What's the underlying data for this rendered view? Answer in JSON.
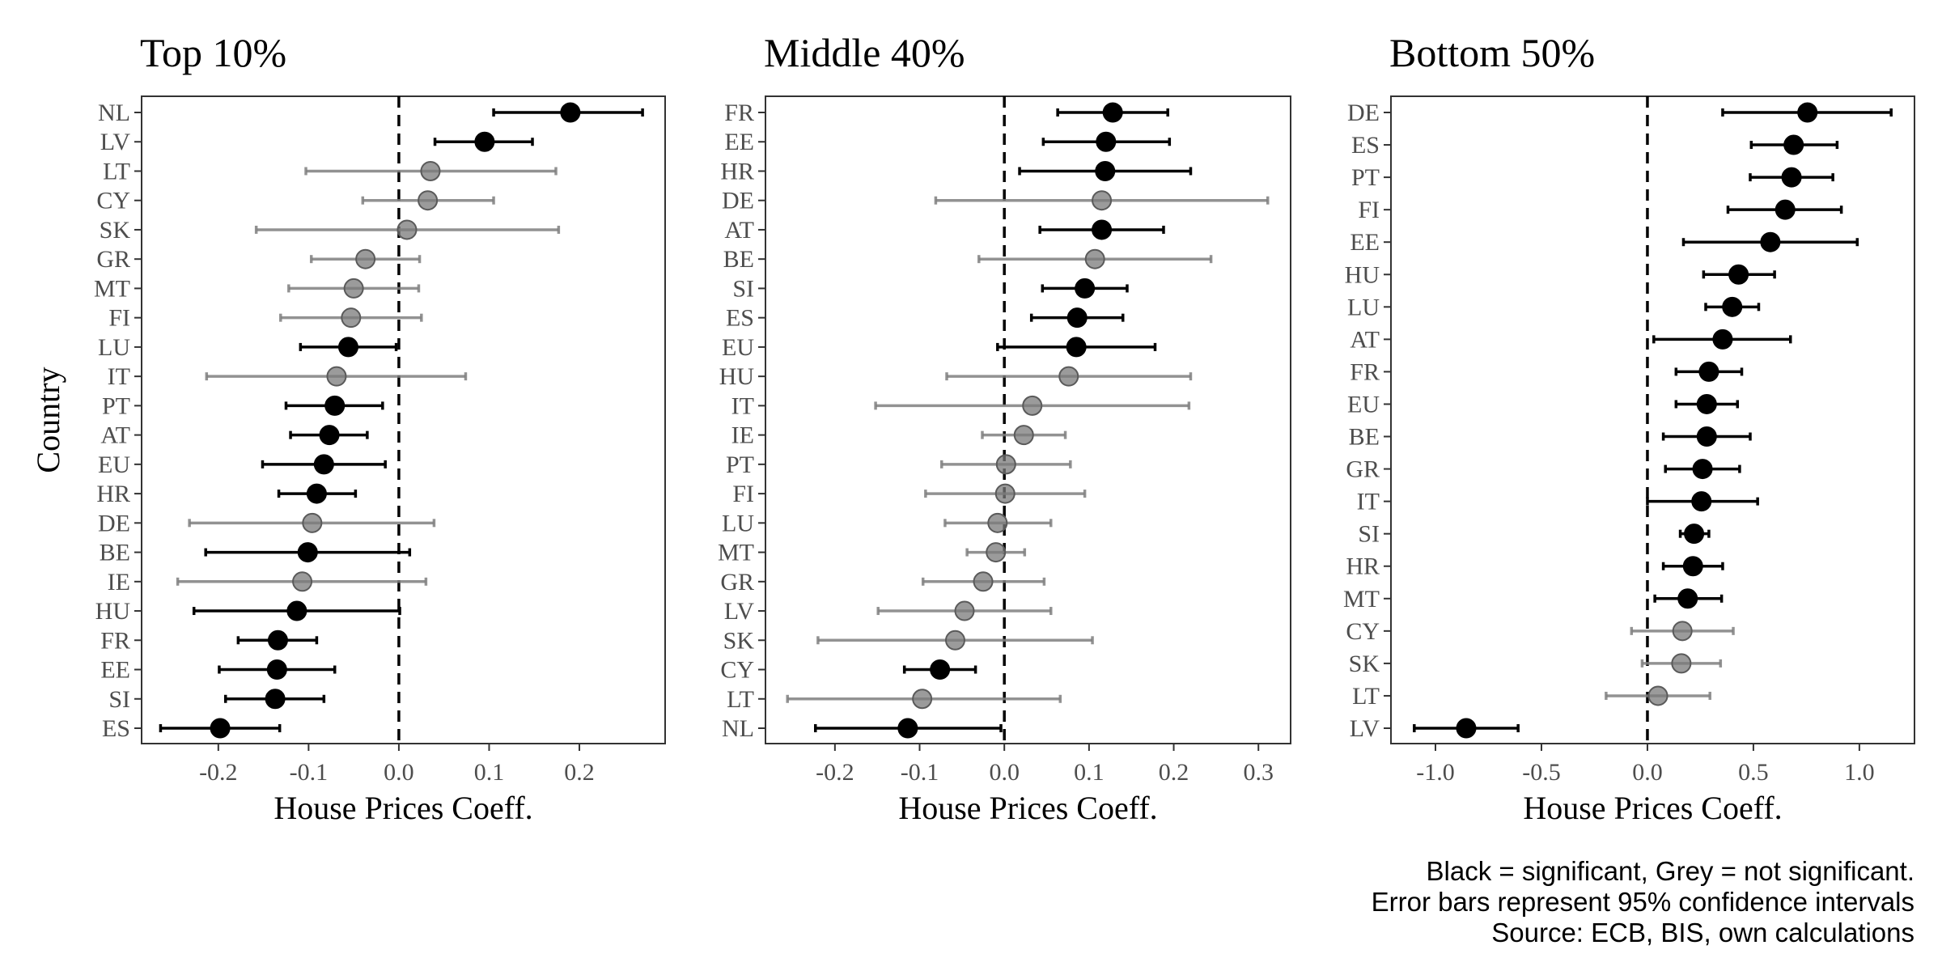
{
  "chart_data": [
    {
      "type": "scatter",
      "title": "Top 10%",
      "xlabel": "House Prices Coeff.",
      "ylabel": "Country",
      "xlim": [
        -0.285,
        0.295
      ],
      "xticks": [
        -0.2,
        -0.1,
        0.0,
        0.1,
        0.2
      ],
      "xtick_labels": [
        "-0.2",
        "-0.1",
        "0.0",
        "0.1",
        "0.2"
      ],
      "reference_line_x": 0.0,
      "grid": false,
      "points": [
        {
          "country": "NL",
          "estimate": 0.19,
          "ci_low": 0.105,
          "ci_high": 0.27,
          "significant": true
        },
        {
          "country": "LV",
          "estimate": 0.095,
          "ci_low": 0.04,
          "ci_high": 0.148,
          "significant": true
        },
        {
          "country": "LT",
          "estimate": 0.035,
          "ci_low": -0.103,
          "ci_high": 0.174,
          "significant": false
        },
        {
          "country": "CY",
          "estimate": 0.032,
          "ci_low": -0.04,
          "ci_high": 0.105,
          "significant": false
        },
        {
          "country": "SK",
          "estimate": 0.009,
          "ci_low": -0.158,
          "ci_high": 0.177,
          "significant": false
        },
        {
          "country": "GR",
          "estimate": -0.037,
          "ci_low": -0.097,
          "ci_high": 0.023,
          "significant": false
        },
        {
          "country": "MT",
          "estimate": -0.05,
          "ci_low": -0.122,
          "ci_high": 0.022,
          "significant": false
        },
        {
          "country": "FI",
          "estimate": -0.053,
          "ci_low": -0.131,
          "ci_high": 0.025,
          "significant": false
        },
        {
          "country": "LU",
          "estimate": -0.056,
          "ci_low": -0.109,
          "ci_high": -0.003,
          "significant": true
        },
        {
          "country": "IT",
          "estimate": -0.069,
          "ci_low": -0.213,
          "ci_high": 0.074,
          "significant": false
        },
        {
          "country": "PT",
          "estimate": -0.071,
          "ci_low": -0.125,
          "ci_high": -0.018,
          "significant": true
        },
        {
          "country": "AT",
          "estimate": -0.077,
          "ci_low": -0.12,
          "ci_high": -0.035,
          "significant": true
        },
        {
          "country": "EU",
          "estimate": -0.083,
          "ci_low": -0.151,
          "ci_high": -0.015,
          "significant": true
        },
        {
          "country": "HR",
          "estimate": -0.091,
          "ci_low": -0.133,
          "ci_high": -0.048,
          "significant": true
        },
        {
          "country": "DE",
          "estimate": -0.096,
          "ci_low": -0.232,
          "ci_high": 0.039,
          "significant": false
        },
        {
          "country": "BE",
          "estimate": -0.101,
          "ci_low": -0.214,
          "ci_high": 0.012,
          "significant": true
        },
        {
          "country": "IE",
          "estimate": -0.107,
          "ci_low": -0.245,
          "ci_high": 0.03,
          "significant": false
        },
        {
          "country": "HU",
          "estimate": -0.113,
          "ci_low": -0.227,
          "ci_high": 0.001,
          "significant": true
        },
        {
          "country": "FR",
          "estimate": -0.134,
          "ci_low": -0.178,
          "ci_high": -0.091,
          "significant": true
        },
        {
          "country": "EE",
          "estimate": -0.135,
          "ci_low": -0.199,
          "ci_high": -0.071,
          "significant": true
        },
        {
          "country": "SI",
          "estimate": -0.137,
          "ci_low": -0.192,
          "ci_high": -0.083,
          "significant": true
        },
        {
          "country": "ES",
          "estimate": -0.198,
          "ci_low": -0.264,
          "ci_high": -0.132,
          "significant": true
        }
      ]
    },
    {
      "type": "scatter",
      "title": "Middle 40%",
      "xlabel": "House Prices Coeff.",
      "ylabel": "",
      "xlim": [
        -0.282,
        0.338
      ],
      "xticks": [
        -0.2,
        -0.1,
        0.0,
        0.1,
        0.2,
        0.3
      ],
      "xtick_labels": [
        "-0.2",
        "-0.1",
        "0.0",
        "0.1",
        "0.2",
        "0.3"
      ],
      "reference_line_x": 0.0,
      "grid": false,
      "points": [
        {
          "country": "FR",
          "estimate": 0.128,
          "ci_low": 0.063,
          "ci_high": 0.193,
          "significant": true
        },
        {
          "country": "EE",
          "estimate": 0.12,
          "ci_low": 0.046,
          "ci_high": 0.195,
          "significant": true
        },
        {
          "country": "HR",
          "estimate": 0.119,
          "ci_low": 0.018,
          "ci_high": 0.22,
          "significant": true
        },
        {
          "country": "DE",
          "estimate": 0.115,
          "ci_low": -0.081,
          "ci_high": 0.311,
          "significant": false
        },
        {
          "country": "AT",
          "estimate": 0.115,
          "ci_low": 0.042,
          "ci_high": 0.188,
          "significant": true
        },
        {
          "country": "BE",
          "estimate": 0.107,
          "ci_low": -0.03,
          "ci_high": 0.244,
          "significant": false
        },
        {
          "country": "SI",
          "estimate": 0.095,
          "ci_low": 0.045,
          "ci_high": 0.145,
          "significant": true
        },
        {
          "country": "ES",
          "estimate": 0.086,
          "ci_low": 0.032,
          "ci_high": 0.14,
          "significant": true
        },
        {
          "country": "EU",
          "estimate": 0.085,
          "ci_low": -0.008,
          "ci_high": 0.178,
          "significant": true
        },
        {
          "country": "HU",
          "estimate": 0.076,
          "ci_low": -0.068,
          "ci_high": 0.22,
          "significant": false
        },
        {
          "country": "IT",
          "estimate": 0.033,
          "ci_low": -0.152,
          "ci_high": 0.218,
          "significant": false
        },
        {
          "country": "IE",
          "estimate": 0.023,
          "ci_low": -0.026,
          "ci_high": 0.072,
          "significant": false
        },
        {
          "country": "PT",
          "estimate": 0.002,
          "ci_low": -0.074,
          "ci_high": 0.078,
          "significant": false
        },
        {
          "country": "FI",
          "estimate": 0.001,
          "ci_low": -0.093,
          "ci_high": 0.095,
          "significant": false
        },
        {
          "country": "LU",
          "estimate": -0.008,
          "ci_low": -0.07,
          "ci_high": 0.055,
          "significant": false
        },
        {
          "country": "MT",
          "estimate": -0.01,
          "ci_low": -0.044,
          "ci_high": 0.024,
          "significant": false
        },
        {
          "country": "GR",
          "estimate": -0.025,
          "ci_low": -0.096,
          "ci_high": 0.047,
          "significant": false
        },
        {
          "country": "LV",
          "estimate": -0.047,
          "ci_low": -0.149,
          "ci_high": 0.055,
          "significant": false
        },
        {
          "country": "SK",
          "estimate": -0.058,
          "ci_low": -0.22,
          "ci_high": 0.104,
          "significant": false
        },
        {
          "country": "CY",
          "estimate": -0.076,
          "ci_low": -0.118,
          "ci_high": -0.034,
          "significant": true
        },
        {
          "country": "LT",
          "estimate": -0.097,
          "ci_low": -0.256,
          "ci_high": 0.066,
          "significant": false
        },
        {
          "country": "NL",
          "estimate": -0.114,
          "ci_low": -0.223,
          "ci_high": -0.004,
          "significant": true
        }
      ]
    },
    {
      "type": "scatter",
      "title": "Bottom 50%",
      "xlabel": "House Prices Coeff.",
      "ylabel": "",
      "xlim": [
        -1.21,
        1.26
      ],
      "xticks": [
        -1.0,
        -0.5,
        0.0,
        0.5,
        1.0
      ],
      "xtick_labels": [
        "-1.0",
        "-0.5",
        "0.0",
        "0.5",
        "1.0"
      ],
      "reference_line_x": 0.0,
      "grid": false,
      "points": [
        {
          "country": "DE",
          "estimate": 0.755,
          "ci_low": 0.355,
          "ci_high": 1.15,
          "significant": true
        },
        {
          "country": "ES",
          "estimate": 0.69,
          "ci_low": 0.49,
          "ci_high": 0.895,
          "significant": true
        },
        {
          "country": "PT",
          "estimate": 0.68,
          "ci_low": 0.485,
          "ci_high": 0.875,
          "significant": true
        },
        {
          "country": "FI",
          "estimate": 0.65,
          "ci_low": 0.38,
          "ci_high": 0.915,
          "significant": true
        },
        {
          "country": "EE",
          "estimate": 0.58,
          "ci_low": 0.17,
          "ci_high": 0.99,
          "significant": true
        },
        {
          "country": "HU",
          "estimate": 0.43,
          "ci_low": 0.265,
          "ci_high": 0.6,
          "significant": true
        },
        {
          "country": "LU",
          "estimate": 0.4,
          "ci_low": 0.275,
          "ci_high": 0.525,
          "significant": true
        },
        {
          "country": "AT",
          "estimate": 0.355,
          "ci_low": 0.03,
          "ci_high": 0.675,
          "significant": true
        },
        {
          "country": "FR",
          "estimate": 0.29,
          "ci_low": 0.135,
          "ci_high": 0.445,
          "significant": true
        },
        {
          "country": "EU",
          "estimate": 0.28,
          "ci_low": 0.135,
          "ci_high": 0.425,
          "significant": true
        },
        {
          "country": "BE",
          "estimate": 0.28,
          "ci_low": 0.075,
          "ci_high": 0.485,
          "significant": true
        },
        {
          "country": "GR",
          "estimate": 0.26,
          "ci_low": 0.085,
          "ci_high": 0.435,
          "significant": true
        },
        {
          "country": "IT",
          "estimate": 0.255,
          "ci_low": 0.0,
          "ci_high": 0.52,
          "significant": true
        },
        {
          "country": "SI",
          "estimate": 0.22,
          "ci_low": 0.155,
          "ci_high": 0.29,
          "significant": true
        },
        {
          "country": "HR",
          "estimate": 0.215,
          "ci_low": 0.075,
          "ci_high": 0.355,
          "significant": true
        },
        {
          "country": "MT",
          "estimate": 0.19,
          "ci_low": 0.035,
          "ci_high": 0.35,
          "significant": true
        },
        {
          "country": "CY",
          "estimate": 0.165,
          "ci_low": -0.075,
          "ci_high": 0.405,
          "significant": false
        },
        {
          "country": "SK",
          "estimate": 0.16,
          "ci_low": -0.025,
          "ci_high": 0.345,
          "significant": false
        },
        {
          "country": "LT",
          "estimate": 0.05,
          "ci_low": -0.195,
          "ci_high": 0.295,
          "significant": false
        },
        {
          "country": "LV",
          "estimate": -0.855,
          "ci_low": -1.1,
          "ci_high": -0.61,
          "significant": true
        }
      ]
    }
  ],
  "colors": {
    "significant": "#000000",
    "not_significant": "#808080",
    "reference_line": "#000000"
  },
  "caption": {
    "line1": "Black = significant, Grey = not significant.",
    "line2": "Error bars represent 95% confidence intervals",
    "line3": "Source: ECB, BIS, own calculations"
  }
}
